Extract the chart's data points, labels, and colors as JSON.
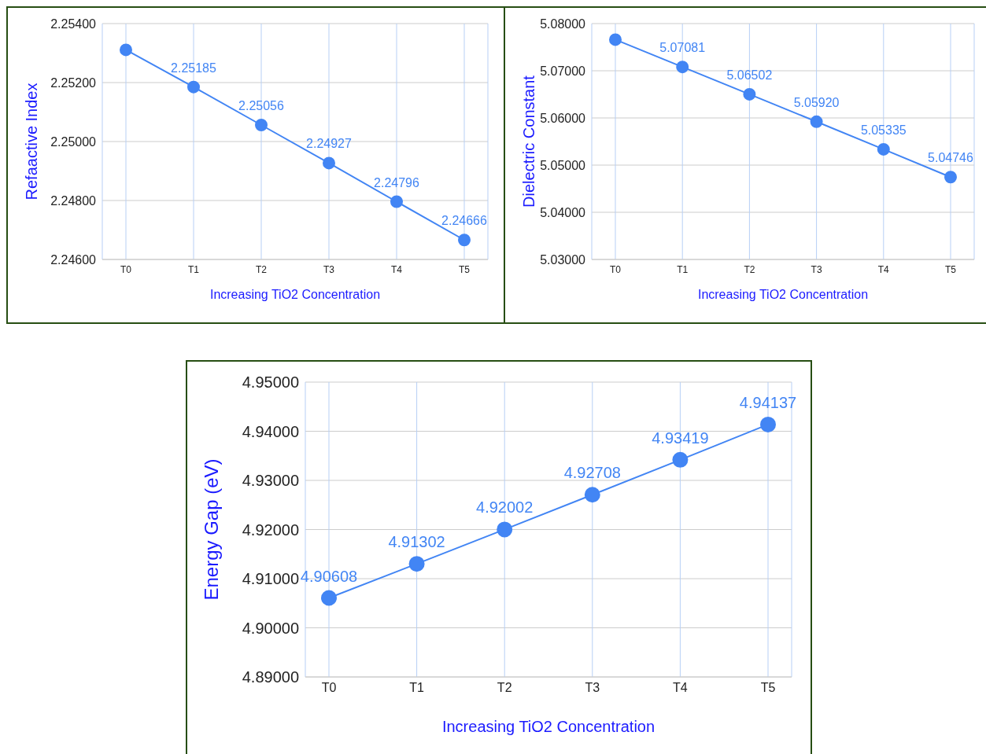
{
  "chart_data": [
    {
      "type": "line",
      "xlabel": "Increasing TiO2 Concentration",
      "ylabel": "Refaactive Index",
      "categories": [
        "T0",
        "T1",
        "T2",
        "T3",
        "T4",
        "T5"
      ],
      "values": [
        2.25311,
        2.25185,
        2.25056,
        2.24927,
        2.24796,
        2.24666
      ],
      "value_labels": [
        null,
        "2.25185",
        "2.25056",
        "2.24927",
        "2.24796",
        "2.24666"
      ],
      "color": "#4285f4",
      "ylim": [
        2.246,
        2.254
      ],
      "yticks": [
        {
          "value": 2.246,
          "label": "2.24600"
        },
        {
          "value": 2.248,
          "label": "2.24800"
        },
        {
          "value": 2.25,
          "label": "2.25000"
        },
        {
          "value": 2.252,
          "label": "2.25200"
        },
        {
          "value": 2.254,
          "label": "2.25400"
        }
      ],
      "grid": true,
      "marker": "circle"
    },
    {
      "type": "line",
      "xlabel": "Increasing TiO2 Concentration",
      "ylabel": "Dielectric Constant",
      "categories": [
        "T0",
        "T1",
        "T2",
        "T3",
        "T4",
        "T5"
      ],
      "values": [
        5.0766,
        5.07081,
        5.06502,
        5.0592,
        5.05335,
        5.04746
      ],
      "value_labels": [
        null,
        "5.07081",
        "5.06502",
        "5.05920",
        "5.05335",
        "5.04746"
      ],
      "color": "#4285f4",
      "ylim": [
        5.03,
        5.08
      ],
      "yticks": [
        {
          "value": 5.03,
          "label": "5.03000"
        },
        {
          "value": 5.04,
          "label": "5.04000"
        },
        {
          "value": 5.05,
          "label": "5.05000"
        },
        {
          "value": 5.06,
          "label": "5.06000"
        },
        {
          "value": 5.07,
          "label": "5.07000"
        },
        {
          "value": 5.08,
          "label": "5.08000"
        }
      ],
      "grid": true,
      "marker": "circle"
    },
    {
      "type": "line",
      "xlabel": "Increasing TiO2 Concentration",
      "ylabel": "Energy Gap (eV)",
      "categories": [
        "T0",
        "T1",
        "T2",
        "T3",
        "T4",
        "T5"
      ],
      "values": [
        4.90608,
        4.91302,
        4.92002,
        4.92708,
        4.93419,
        4.94137
      ],
      "data_labels": true,
      "color": "#4285f4",
      "ylim": [
        4.89,
        4.95
      ],
      "yticks": [
        {
          "value": 4.89,
          "label": "4.89000"
        },
        {
          "value": 4.9,
          "label": "4.90000"
        },
        {
          "value": 4.91,
          "label": "4.91000"
        },
        {
          "value": 4.92,
          "label": "4.92000"
        },
        {
          "value": 4.93,
          "label": "4.93000"
        },
        {
          "value": 4.94,
          "label": "4.94000"
        },
        {
          "value": 4.95,
          "label": "4.95000"
        }
      ],
      "grid": true,
      "marker": "circle"
    }
  ]
}
